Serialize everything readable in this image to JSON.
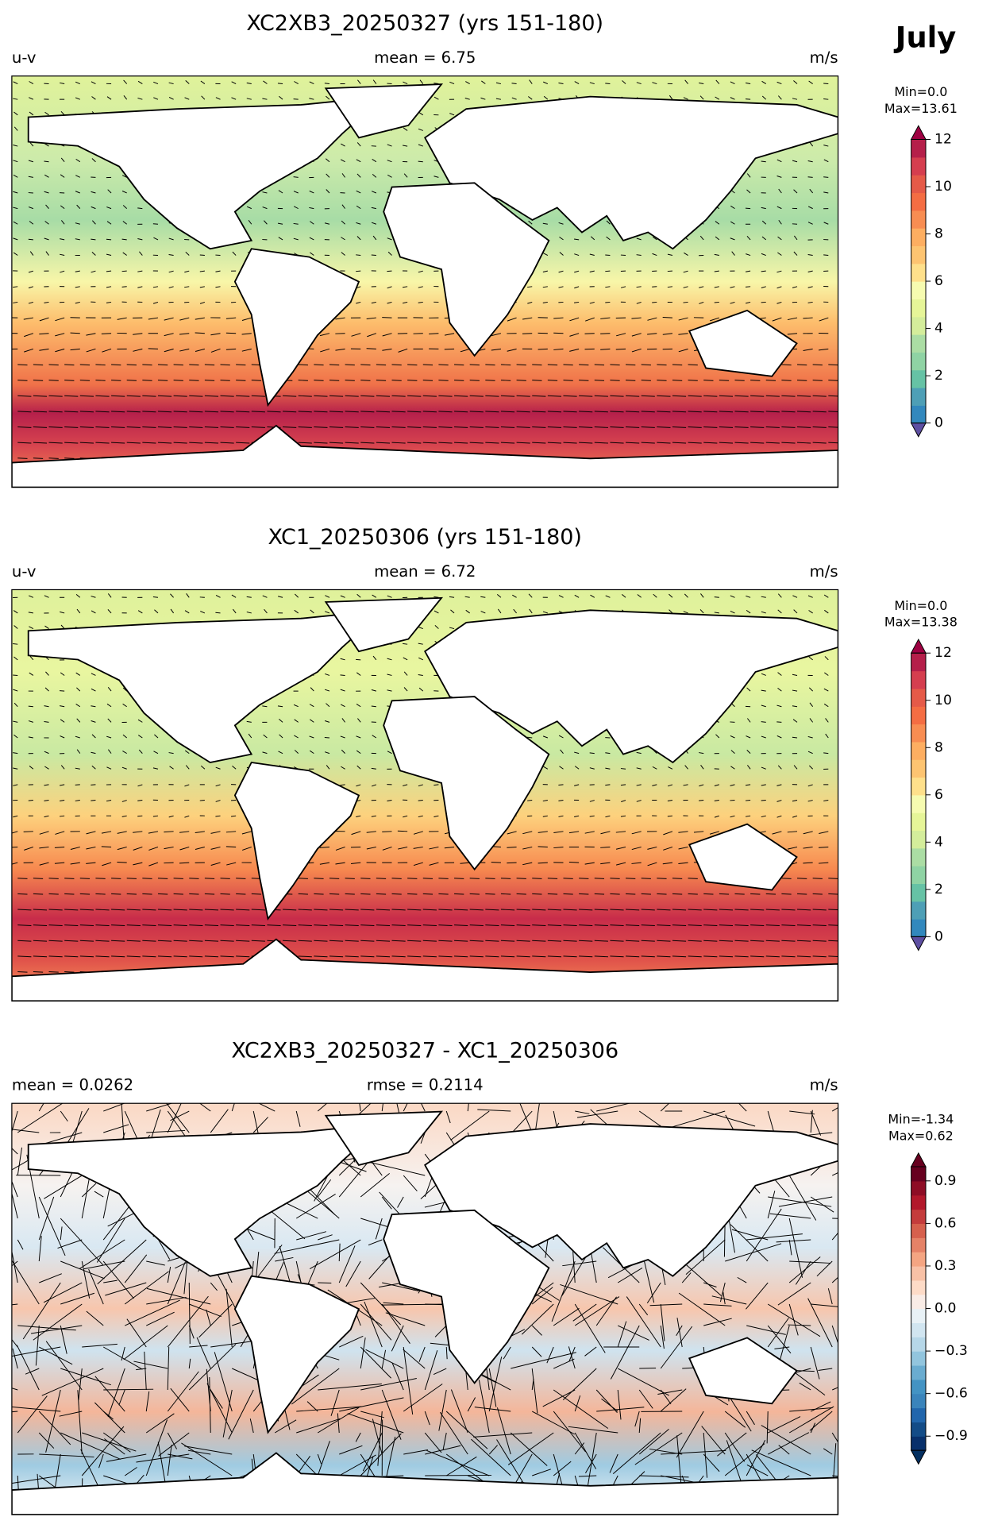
{
  "figure_title": "July",
  "chart_data": [
    {
      "type": "map",
      "title": "XC2XB3_20250327 (yrs 151-180)",
      "left_label": "u-v",
      "center_label": "mean = 6.75",
      "right_label": "m/s",
      "min_label": "Min=0.0",
      "max_label": "Max=13.61",
      "colorbar": {
        "lim": [
          0,
          12
        ],
        "ticks": [
          0,
          2,
          4,
          6,
          8,
          10,
          12
        ],
        "colors": [
          "#3288bd",
          "#4e9fb6",
          "#66c2a5",
          "#8fd3a4",
          "#abdda4",
          "#d4ed9b",
          "#e6f598",
          "#f6fbb0",
          "#fee08b",
          "#fdc471",
          "#fdae61",
          "#f88d52",
          "#f46d43",
          "#e55a48",
          "#d53e4f",
          "#b51f4a"
        ],
        "under_color": "#5e4fa2",
        "over_color": "#9e0142"
      }
    },
    {
      "type": "map",
      "title": "XC1_20250306 (yrs 151-180)",
      "left_label": "u-v",
      "center_label": "mean = 6.72",
      "right_label": "m/s",
      "min_label": "Min=0.0",
      "max_label": "Max=13.38",
      "colorbar": {
        "lim": [
          0,
          12
        ],
        "ticks": [
          0,
          2,
          4,
          6,
          8,
          10,
          12
        ],
        "colors": [
          "#3288bd",
          "#4e9fb6",
          "#66c2a5",
          "#8fd3a4",
          "#abdda4",
          "#d4ed9b",
          "#e6f598",
          "#f6fbb0",
          "#fee08b",
          "#fdc471",
          "#fdae61",
          "#f88d52",
          "#f46d43",
          "#e55a48",
          "#d53e4f",
          "#b51f4a"
        ],
        "under_color": "#5e4fa2",
        "over_color": "#9e0142"
      }
    },
    {
      "type": "map",
      "title": "XC2XB3_20250327 - XC1_20250306",
      "left_label": "mean = 0.0262",
      "center_label": "rmse = 0.2114",
      "right_label": "m/s",
      "min_label": "Min=-1.34",
      "max_label": "Max=0.62",
      "colorbar": {
        "lim": [
          -1,
          1
        ],
        "ticks": [
          {
            "value": -0.9,
            "label": "−0.9"
          },
          {
            "value": -0.6,
            "label": "−0.6"
          },
          {
            "value": -0.3,
            "label": "−0.3"
          },
          {
            "value": 0,
            "label": "0.0"
          },
          0.3,
          0.6,
          0.9
        ],
        "colors": [
          "#08306b",
          "#134c87",
          "#2166ac",
          "#3a84bb",
          "#4393c3",
          "#6aacd0",
          "#92c5de",
          "#b6d7e8",
          "#d1e5f0",
          "#e8f1f6",
          "#f9ece6",
          "#fddbc7",
          "#f8c1a6",
          "#f4a582",
          "#e58267",
          "#d6604d",
          "#c43c3c",
          "#b2182b",
          "#8e0d25",
          "#67001f"
        ],
        "under_color": "#053061",
        "over_color": "#67001f"
      }
    }
  ]
}
